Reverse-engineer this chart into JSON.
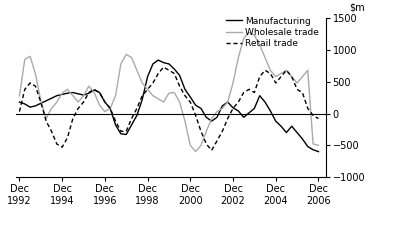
{
  "title": "",
  "ylim": [
    -1000,
    1500
  ],
  "yticks": [
    -1000,
    -500,
    0,
    500,
    1000,
    1500
  ],
  "xlim": [
    1992.75,
    2007.25
  ],
  "xtick_years": [
    1992,
    1994,
    1996,
    1998,
    2000,
    2002,
    2004,
    2006
  ],
  "xtick_labels": [
    "Dec\n1992",
    "Dec\n1994",
    "Dec\n1996",
    "Dec\n1998",
    "Dec\n2000",
    "Dec\n2002",
    "Dec\n2004",
    "Dec\n2006"
  ],
  "zero_line": true,
  "legend_labels": [
    "Manufacturing",
    "Wholesale trade",
    "Retail trade"
  ],
  "manufacturing": {
    "t": [
      1992.917,
      1993.167,
      1993.417,
      1993.667,
      1993.917,
      1994.167,
      1994.417,
      1994.667,
      1994.917,
      1995.167,
      1995.417,
      1995.667,
      1995.917,
      1996.167,
      1996.417,
      1996.667,
      1996.917,
      1997.167,
      1997.417,
      1997.667,
      1997.917,
      1998.167,
      1998.417,
      1998.667,
      1998.917,
      1999.167,
      1999.417,
      1999.667,
      1999.917,
      2000.167,
      2000.417,
      2000.667,
      2000.917,
      2001.167,
      2001.417,
      2001.667,
      2001.917,
      2002.167,
      2002.417,
      2002.667,
      2002.917,
      2003.167,
      2003.417,
      2003.667,
      2003.917,
      2004.167,
      2004.417,
      2004.667,
      2004.917,
      2005.167,
      2005.417,
      2005.667,
      2005.917,
      2006.167,
      2006.417,
      2006.667,
      2006.917
    ],
    "v": [
      180,
      150,
      100,
      120,
      160,
      200,
      240,
      280,
      300,
      320,
      330,
      310,
      290,
      320,
      370,
      330,
      180,
      80,
      -180,
      -320,
      -330,
      -180,
      -30,
      220,
      580,
      780,
      840,
      800,
      780,
      700,
      600,
      380,
      260,
      130,
      80,
      -60,
      -120,
      -60,
      120,
      180,
      90,
      40,
      -60,
      10,
      80,
      280,
      180,
      40,
      -120,
      -200,
      -300,
      -200,
      -300,
      -400,
      -520,
      -570,
      -600
    ]
  },
  "wholesale": {
    "t": [
      1992.917,
      1993.167,
      1993.417,
      1993.667,
      1993.917,
      1994.167,
      1994.417,
      1994.667,
      1994.917,
      1995.167,
      1995.417,
      1995.667,
      1995.917,
      1996.167,
      1996.417,
      1996.667,
      1996.917,
      1997.167,
      1997.417,
      1997.667,
      1997.917,
      1998.167,
      1998.417,
      1998.667,
      1998.917,
      1999.167,
      1999.417,
      1999.667,
      1999.917,
      2000.167,
      2000.417,
      2000.667,
      2000.917,
      2001.167,
      2001.417,
      2001.667,
      2001.917,
      2002.167,
      2002.417,
      2002.667,
      2002.917,
      2003.167,
      2003.417,
      2003.667,
      2003.917,
      2004.167,
      2004.417,
      2004.667,
      2004.917,
      2005.167,
      2005.417,
      2005.667,
      2005.917,
      2006.167,
      2006.417,
      2006.667,
      2006.917
    ],
    "v": [
      280,
      850,
      900,
      620,
      200,
      -80,
      80,
      180,
      320,
      380,
      280,
      180,
      280,
      430,
      330,
      130,
      30,
      80,
      280,
      780,
      930,
      880,
      680,
      480,
      380,
      280,
      230,
      180,
      320,
      330,
      180,
      -120,
      -500,
      -600,
      -500,
      -280,
      -80,
      30,
      80,
      180,
      480,
      880,
      1180,
      1280,
      1230,
      1080,
      880,
      680,
      580,
      630,
      680,
      580,
      480,
      580,
      680,
      -480,
      -500
    ]
  },
  "retail": {
    "t": [
      1992.917,
      1993.167,
      1993.417,
      1993.667,
      1993.917,
      1994.167,
      1994.417,
      1994.667,
      1994.917,
      1995.167,
      1995.417,
      1995.667,
      1995.917,
      1996.167,
      1996.417,
      1996.667,
      1996.917,
      1997.167,
      1997.417,
      1997.667,
      1997.917,
      1998.167,
      1998.417,
      1998.667,
      1998.917,
      1999.167,
      1999.417,
      1999.667,
      1999.917,
      2000.167,
      2000.417,
      2000.667,
      2000.917,
      2001.167,
      2001.417,
      2001.667,
      2001.917,
      2002.167,
      2002.417,
      2002.667,
      2002.917,
      2003.167,
      2003.417,
      2003.667,
      2003.917,
      2004.167,
      2004.417,
      2004.667,
      2004.917,
      2005.167,
      2005.417,
      2005.667,
      2005.917,
      2006.167,
      2006.417,
      2006.667,
      2006.917
    ],
    "v": [
      30,
      380,
      480,
      430,
      180,
      -120,
      -280,
      -480,
      -530,
      -380,
      -80,
      80,
      180,
      330,
      380,
      330,
      180,
      80,
      -120,
      -280,
      -280,
      -80,
      80,
      280,
      380,
      480,
      630,
      730,
      680,
      630,
      430,
      280,
      180,
      -30,
      -280,
      -480,
      -580,
      -430,
      -280,
      -80,
      80,
      180,
      330,
      380,
      330,
      580,
      680,
      630,
      480,
      580,
      680,
      580,
      380,
      330,
      80,
      -30,
      -80
    ]
  },
  "manufacturing_color": "#000000",
  "wholesale_color": "#aaaaaa",
  "retail_color": "#000000",
  "background_color": "#ffffff",
  "linewidth": 1.0
}
